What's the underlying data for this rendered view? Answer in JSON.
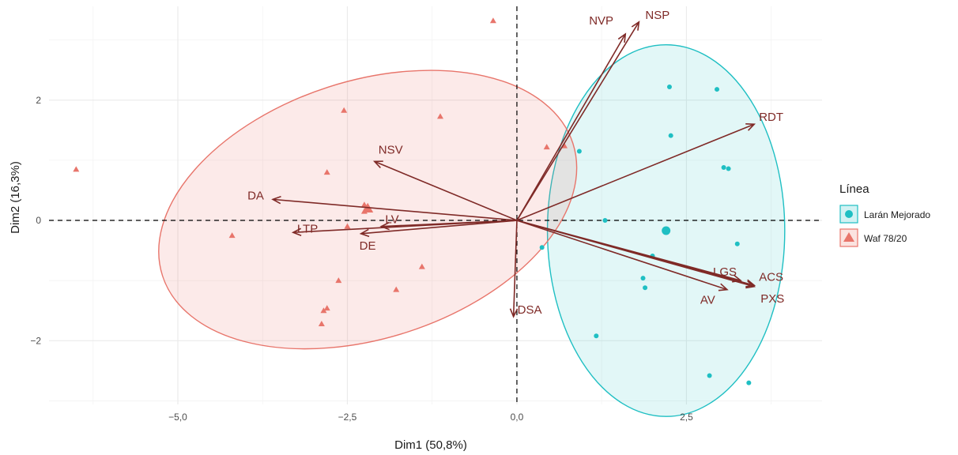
{
  "chart_data": {
    "type": "scatter",
    "title": "",
    "xlabel": "Dim1 (50,8%)",
    "ylabel": "Dim2 (16,3%)",
    "xlim": [
      -6.9,
      4.5
    ],
    "ylim": [
      -3.06,
      3.56
    ],
    "x_ticks": [
      {
        "value": -5.0,
        "label": "−5,0"
      },
      {
        "value": -2.5,
        "label": "−2,5"
      },
      {
        "value": 0.0,
        "label": "0,0"
      },
      {
        "value": 2.5,
        "label": "2,5"
      }
    ],
    "y_ticks": [
      {
        "value": -2,
        "label": "−2"
      },
      {
        "value": 0,
        "label": "0"
      },
      {
        "value": 2,
        "label": "2"
      }
    ],
    "grid": true,
    "colors": {
      "larán": "#1fbfc3",
      "waf": "#e8756b",
      "arrow": "#7f2a27",
      "grid": "#ebebeb"
    },
    "legend": {
      "title": "Línea",
      "position": "right",
      "items": [
        {
          "label": "Larán Mejorado",
          "color": "#1fbfc3",
          "shape": "circle"
        },
        {
          "label": "Waf 78/20",
          "color": "#e8756b",
          "shape": "triangle"
        }
      ]
    },
    "series": [
      {
        "name": "Larán Mejorado",
        "shape": "circle",
        "points": [
          [
            2.25,
            2.22
          ],
          [
            2.95,
            2.18
          ],
          [
            2.27,
            1.41
          ],
          [
            0.92,
            1.15
          ],
          [
            3.05,
            0.88
          ],
          [
            3.12,
            0.86
          ],
          [
            1.3,
            0.0
          ],
          [
            3.25,
            -0.39
          ],
          [
            2.0,
            -0.59
          ],
          [
            1.86,
            -0.96
          ],
          [
            1.89,
            -1.12
          ],
          [
            0.37,
            -0.45
          ],
          [
            1.17,
            -1.92
          ],
          [
            2.84,
            -2.58
          ],
          [
            3.42,
            -2.7
          ]
        ],
        "centroid": [
          2.2,
          -0.17
        ]
      },
      {
        "name": "Waf 78/20",
        "shape": "triangle",
        "points": [
          [
            -6.5,
            0.85
          ],
          [
            -4.2,
            -0.25
          ],
          [
            -2.55,
            1.83
          ],
          [
            -1.13,
            1.73
          ],
          [
            -0.35,
            3.32
          ],
          [
            -2.8,
            0.8
          ],
          [
            -2.25,
            0.26
          ],
          [
            -2.25,
            0.15
          ],
          [
            -2.5,
            -0.1
          ],
          [
            -2.63,
            -1.0
          ],
          [
            -1.78,
            -1.15
          ],
          [
            -1.4,
            -0.77
          ],
          [
            -2.8,
            -1.46
          ],
          [
            -2.85,
            -1.5
          ],
          [
            -2.88,
            -1.72
          ],
          [
            0.44,
            1.22
          ],
          [
            0.7,
            1.24
          ]
        ],
        "centroid": [
          -2.2,
          0.2
        ]
      }
    ],
    "ellipses": [
      {
        "group": "Larán Mejorado",
        "cx": 2.2,
        "cy": -0.17,
        "rx": 1.75,
        "ry": 3.09,
        "angle": 0
      },
      {
        "group": "Waf 78/20",
        "cx": -2.2,
        "cy": 0.18,
        "rx": 3.18,
        "ry": 2.14,
        "angle": 17.9
      }
    ],
    "vectors": [
      {
        "name": "NSP",
        "x": 1.8,
        "y": 3.3
      },
      {
        "name": "NVP",
        "x": 1.6,
        "y": 3.1
      },
      {
        "name": "RDT",
        "x": 3.5,
        "y": 1.6
      },
      {
        "name": "NSV",
        "x": -2.1,
        "y": 0.98
      },
      {
        "name": "DA",
        "x": -3.6,
        "y": 0.35
      },
      {
        "name": "LTP",
        "x": -3.3,
        "y": -0.2
      },
      {
        "name": "LV",
        "x": -2.0,
        "y": -0.1
      },
      {
        "name": "DE",
        "x": -2.3,
        "y": -0.22
      },
      {
        "name": "DSA",
        "x": -0.05,
        "y": -1.6
      },
      {
        "name": "LGS",
        "x": 3.3,
        "y": -1.0
      },
      {
        "name": "ACS",
        "x": 3.5,
        "y": -1.08
      },
      {
        "name": "PXS",
        "x": 3.5,
        "y": -1.1
      },
      {
        "name": "AV",
        "x": 3.1,
        "y": -1.15
      }
    ]
  }
}
